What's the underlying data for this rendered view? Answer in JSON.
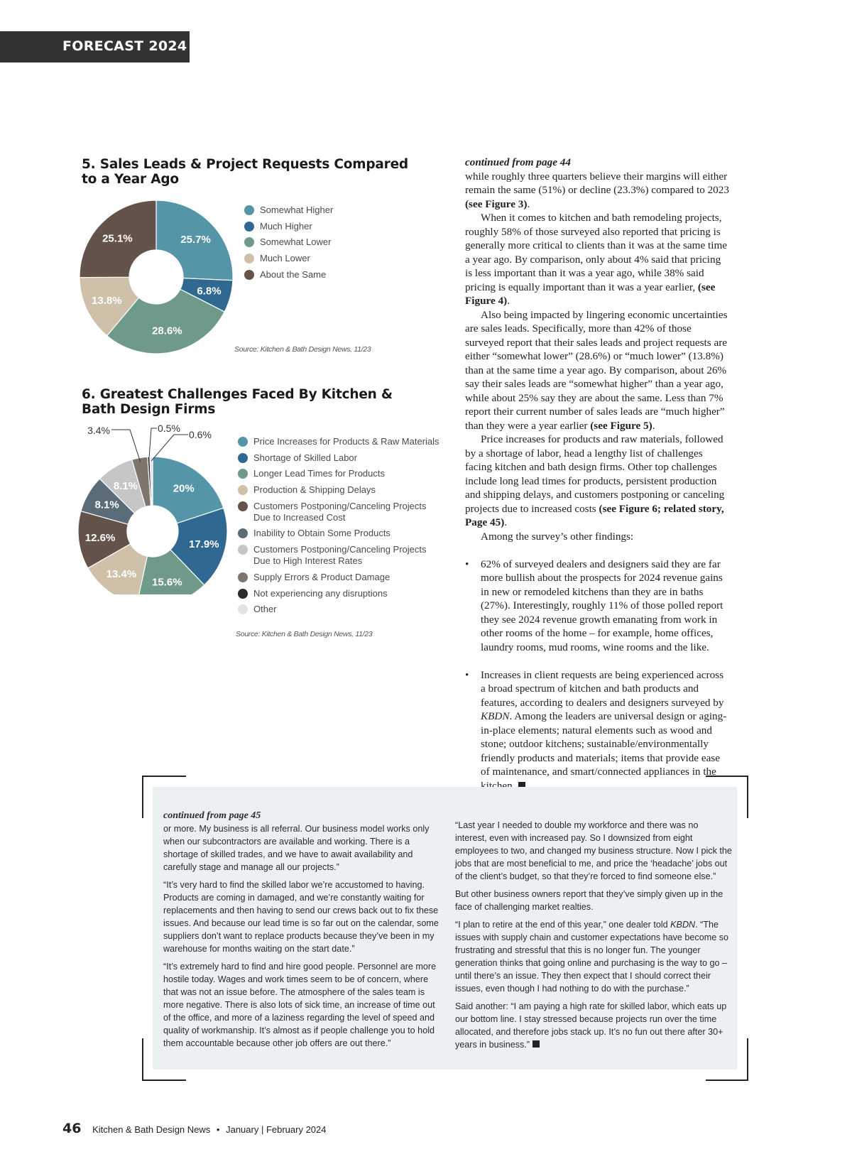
{
  "header": {
    "section": "FORECAST 2024"
  },
  "chart_data": [
    {
      "type": "pie",
      "title": "5. Sales Leads & Project Requests Compared to a Year Ago",
      "title_lines": [
        "5. Sales Leads & Project Requests Compared",
        "to a Year Ago"
      ],
      "donut": true,
      "legend_position": "right",
      "categories": [
        "Somewhat Higher",
        "Much Higher",
        "Somewhat Lower",
        "Much Lower",
        "About the Same"
      ],
      "values": [
        25.7,
        6.8,
        28.6,
        13.8,
        25.1
      ],
      "labels": [
        "25.7%",
        "6.8%",
        "28.6%",
        "13.8%",
        "25.1%"
      ],
      "colors": [
        "#5496a8",
        "#2f6890",
        "#6f9a89",
        "#cfc0a9",
        "#64534a"
      ],
      "source": "Source: Kitchen & Bath Design News, 11/23"
    },
    {
      "type": "pie",
      "title": "6. Greatest Challenges Faced By Kitchen & Bath Design Firms",
      "title_lines": [
        "6. Greatest Challenges Faced By Kitchen &",
        "Bath Design Firms"
      ],
      "donut": true,
      "legend_position": "right",
      "categories": [
        "Price Increases for Products & Raw Materials",
        "Shortage of Skilled Labor",
        "Longer Lead Times for Products",
        "Production & Shipping Delays",
        "Customers Postponing/Canceling Projects Due to Increased Cost",
        "Inability to Obtain Some Products",
        "Customers Postponing/Canceling Projects Due to High Interest Rates",
        "Supply Errors & Product Damage",
        "Not experiencing any disruptions",
        "Other"
      ],
      "legend_lines": [
        [
          "Price Increases for Products & Raw Materials"
        ],
        [
          "Shortage of Skilled Labor"
        ],
        [
          "Longer Lead Times for Products"
        ],
        [
          "Production & Shipping Delays"
        ],
        [
          "Customers Postponing/Canceling Projects",
          "Due to Increased Cost"
        ],
        [
          "Inability to Obtain Some Products"
        ],
        [
          "Customers Postponing/Canceling Projects",
          "Due to High Interest Rates"
        ],
        [
          "Supply Errors & Product Damage"
        ],
        [
          "Not experiencing any disruptions"
        ],
        [
          "Other"
        ]
      ],
      "values": [
        20,
        17.9,
        15.6,
        13.4,
        12.6,
        8.1,
        8.1,
        3.4,
        0.5,
        0.6
      ],
      "labels": [
        "20%",
        "17.9%",
        "15.6%",
        "13.4%",
        "12.6%",
        "8.1%",
        "8.1%",
        "3.4%",
        "0.5%",
        "0.6%"
      ],
      "colors": [
        "#5496a8",
        "#2f6890",
        "#6f9a89",
        "#cfc0a9",
        "#64534a",
        "#5b6c79",
        "#c6c6c6",
        "#7e766d",
        "#2b2b2b",
        "#e2e2e2"
      ],
      "source": "Source: Kitchen & Bath Design News, 11/23"
    }
  ],
  "article": {
    "continued": "continued from page 44",
    "p1": [
      "while roughly three quarters believe their margins will either remain the same (51%) or decline (23.3%) compared to 2023 ",
      "(see Figure 3)",
      "."
    ],
    "p2": [
      "When it comes to kitchen and bath remodeling projects, roughly 58% of those surveyed also reported that pricing is generally more critical to clients than it was at the same time a year ago. By comparison, only about 4% said that pricing is less important than it was a year ago, while 38% said pricing is equally important than it was a year earlier, ",
      "(see Figure 4)",
      "."
    ],
    "p3": [
      "Also being impacted by lingering economic uncertainties are sales leads. Specifically, more than 42% of those surveyed report that their sales leads and project requests are either “somewhat lower” (28.6%) or “much lower” (13.8%) than at the same time a year ago. By comparison, about 26% say their sales leads are “somewhat higher” than a year ago, while about 25% say they are about the same. Less than 7% report their current number of sales leads are “much higher” than they were a year earlier ",
      "(see Figure 5)",
      "."
    ],
    "p4": [
      "Price increases for products and raw materials, followed by a shortage of labor, head a lengthy list of challenges facing kitchen and bath design firms. Other top challenges include long lead times for products, persistent production and ship­ping delays, and customers postponing or canceling projects due to increased costs ",
      "(see Figure 6; related story, Page 45)",
      "."
    ],
    "p5": "Among the survey’s other findings:",
    "bullet": "•",
    "b1": "62% of surveyed dealers and designers said they are far more bullish about the prospects for 2024 revenue gains in new or remodeled kitchens than they are in baths (27%). Interestingly, roughly 11% of those polled report they see 2024 revenue growth emanating from work in other rooms of the home – for example, home offices, laundry rooms, mud rooms, wine rooms and the like.",
    "b2": [
      "Increases in client requests are being experienced across a broad spectrum of kitchen and bath products and features, according to dealers and designers surveyed by ",
      "KBDN",
      ". Among the leaders are universal design or aging-in-place elements; natural elements such as wood and stone; out­door kitchens; sustainable/environmentally friendly prod­ucts and materials; items that provide ease of maintenance, and smart/connected appliances in the kitchen."
    ]
  },
  "sidebar": {
    "continued": "continued from page 45",
    "left": [
      "or more. My business is all referral. Our business model works only when our subcontractors are available and working. There is a shortage of skilled trades, and we have to await availability and carefully stage and manage all our projects.”",
      "“It’s very hard to find the skilled labor we’re accustomed to having. Products are coming in damaged, and we’re constantly waiting for replacements and then having to send our crews back out to fix these issues. And because our lead time is so far out on the calen­dar, some suppliers don’t want to replace products because they’ve been in my warehouse for months waiting on the start date.”",
      "“It’s extremely hard to find and hire good people. Personnel are more hostile today. Wages and work times seem to be of concern, where that was not an issue before. The atmosphere of the sales team is more negative. There is also lots of sick time, an increase of time out of the office, and more of a laziness regarding the level of speed and quality of workmanship. It’s almost as if people challenge you to hold them accountable because other job offers are out there.”"
    ],
    "right_p1": "“Last year I needed to double my workforce and there was no interest, even with increased pay. So I downsized from eight employees to two, and changed my business structure. Now I pick the jobs that are most beneficial to me, and price the ‘headache’ jobs out of the client’s budget, so that they’re forced to find some­one else.”",
    "right_p2": "But other business owners report that they’ve simply given up in the face of challenging market realties.",
    "right_p3": [
      "“I plan to retire at the end of this year,” one dealer told ",
      "KBDN",
      ". “The issues with supply chain and customer expectations have become so frustrating and stressful that this is no longer fun. The younger generation thinks that going online and purchasing is the way to go – until there’s an issue. They then expect that I should correct their issues, even though I had nothing to do with the purchase.”"
    ],
    "right_p4": "Said another: “I am paying a high rate for skilled labor, which eats up our bottom line. I stay stressed because projects run over the time allocated, and therefore jobs stack up. It’s no fun out there after 30+ years in business.”"
  },
  "footer": {
    "page": "46",
    "publication": "Kitchen & Bath Design News",
    "separator": "•",
    "issue": "January | February 2024"
  }
}
